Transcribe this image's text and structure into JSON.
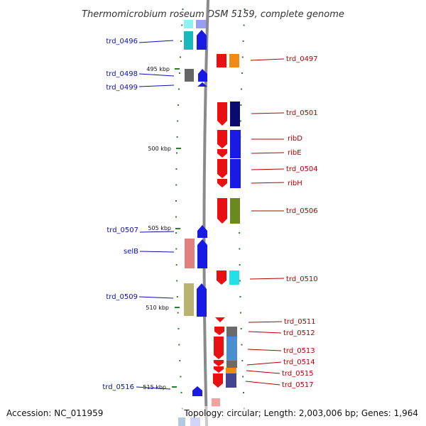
{
  "title": "Thermomicrobium roseum DSM 5159, complete genome",
  "footer": {
    "accession": "Accession: NC_011959",
    "topology": "Topology: circular; Length: 2,003,006 bp; Genes: 1,964"
  },
  "colors": {
    "left_label": "#0a14a0",
    "right_label": "#b00000",
    "tick": "#2e7d2e",
    "backbone": "#8a8a8a"
  },
  "scale_labels": [
    "495 kbp",
    "500 kbp",
    "505 kbp",
    "510 kbp",
    "515 kbp"
  ],
  "left_labels": [
    "trd_0496",
    "trd_0498",
    "trd_0499",
    "trd_0507",
    "selB",
    "trd_0509",
    "trd_0516"
  ],
  "right_labels": [
    "trd_0497",
    "trd_0501",
    "ribD",
    "ribE",
    "trd_0504",
    "ribH",
    "trd_0506",
    "trd_0510",
    "trd_0511",
    "trd_0512",
    "trd_0513",
    "trd_0514",
    "trd_0515",
    "trd_0517"
  ]
}
